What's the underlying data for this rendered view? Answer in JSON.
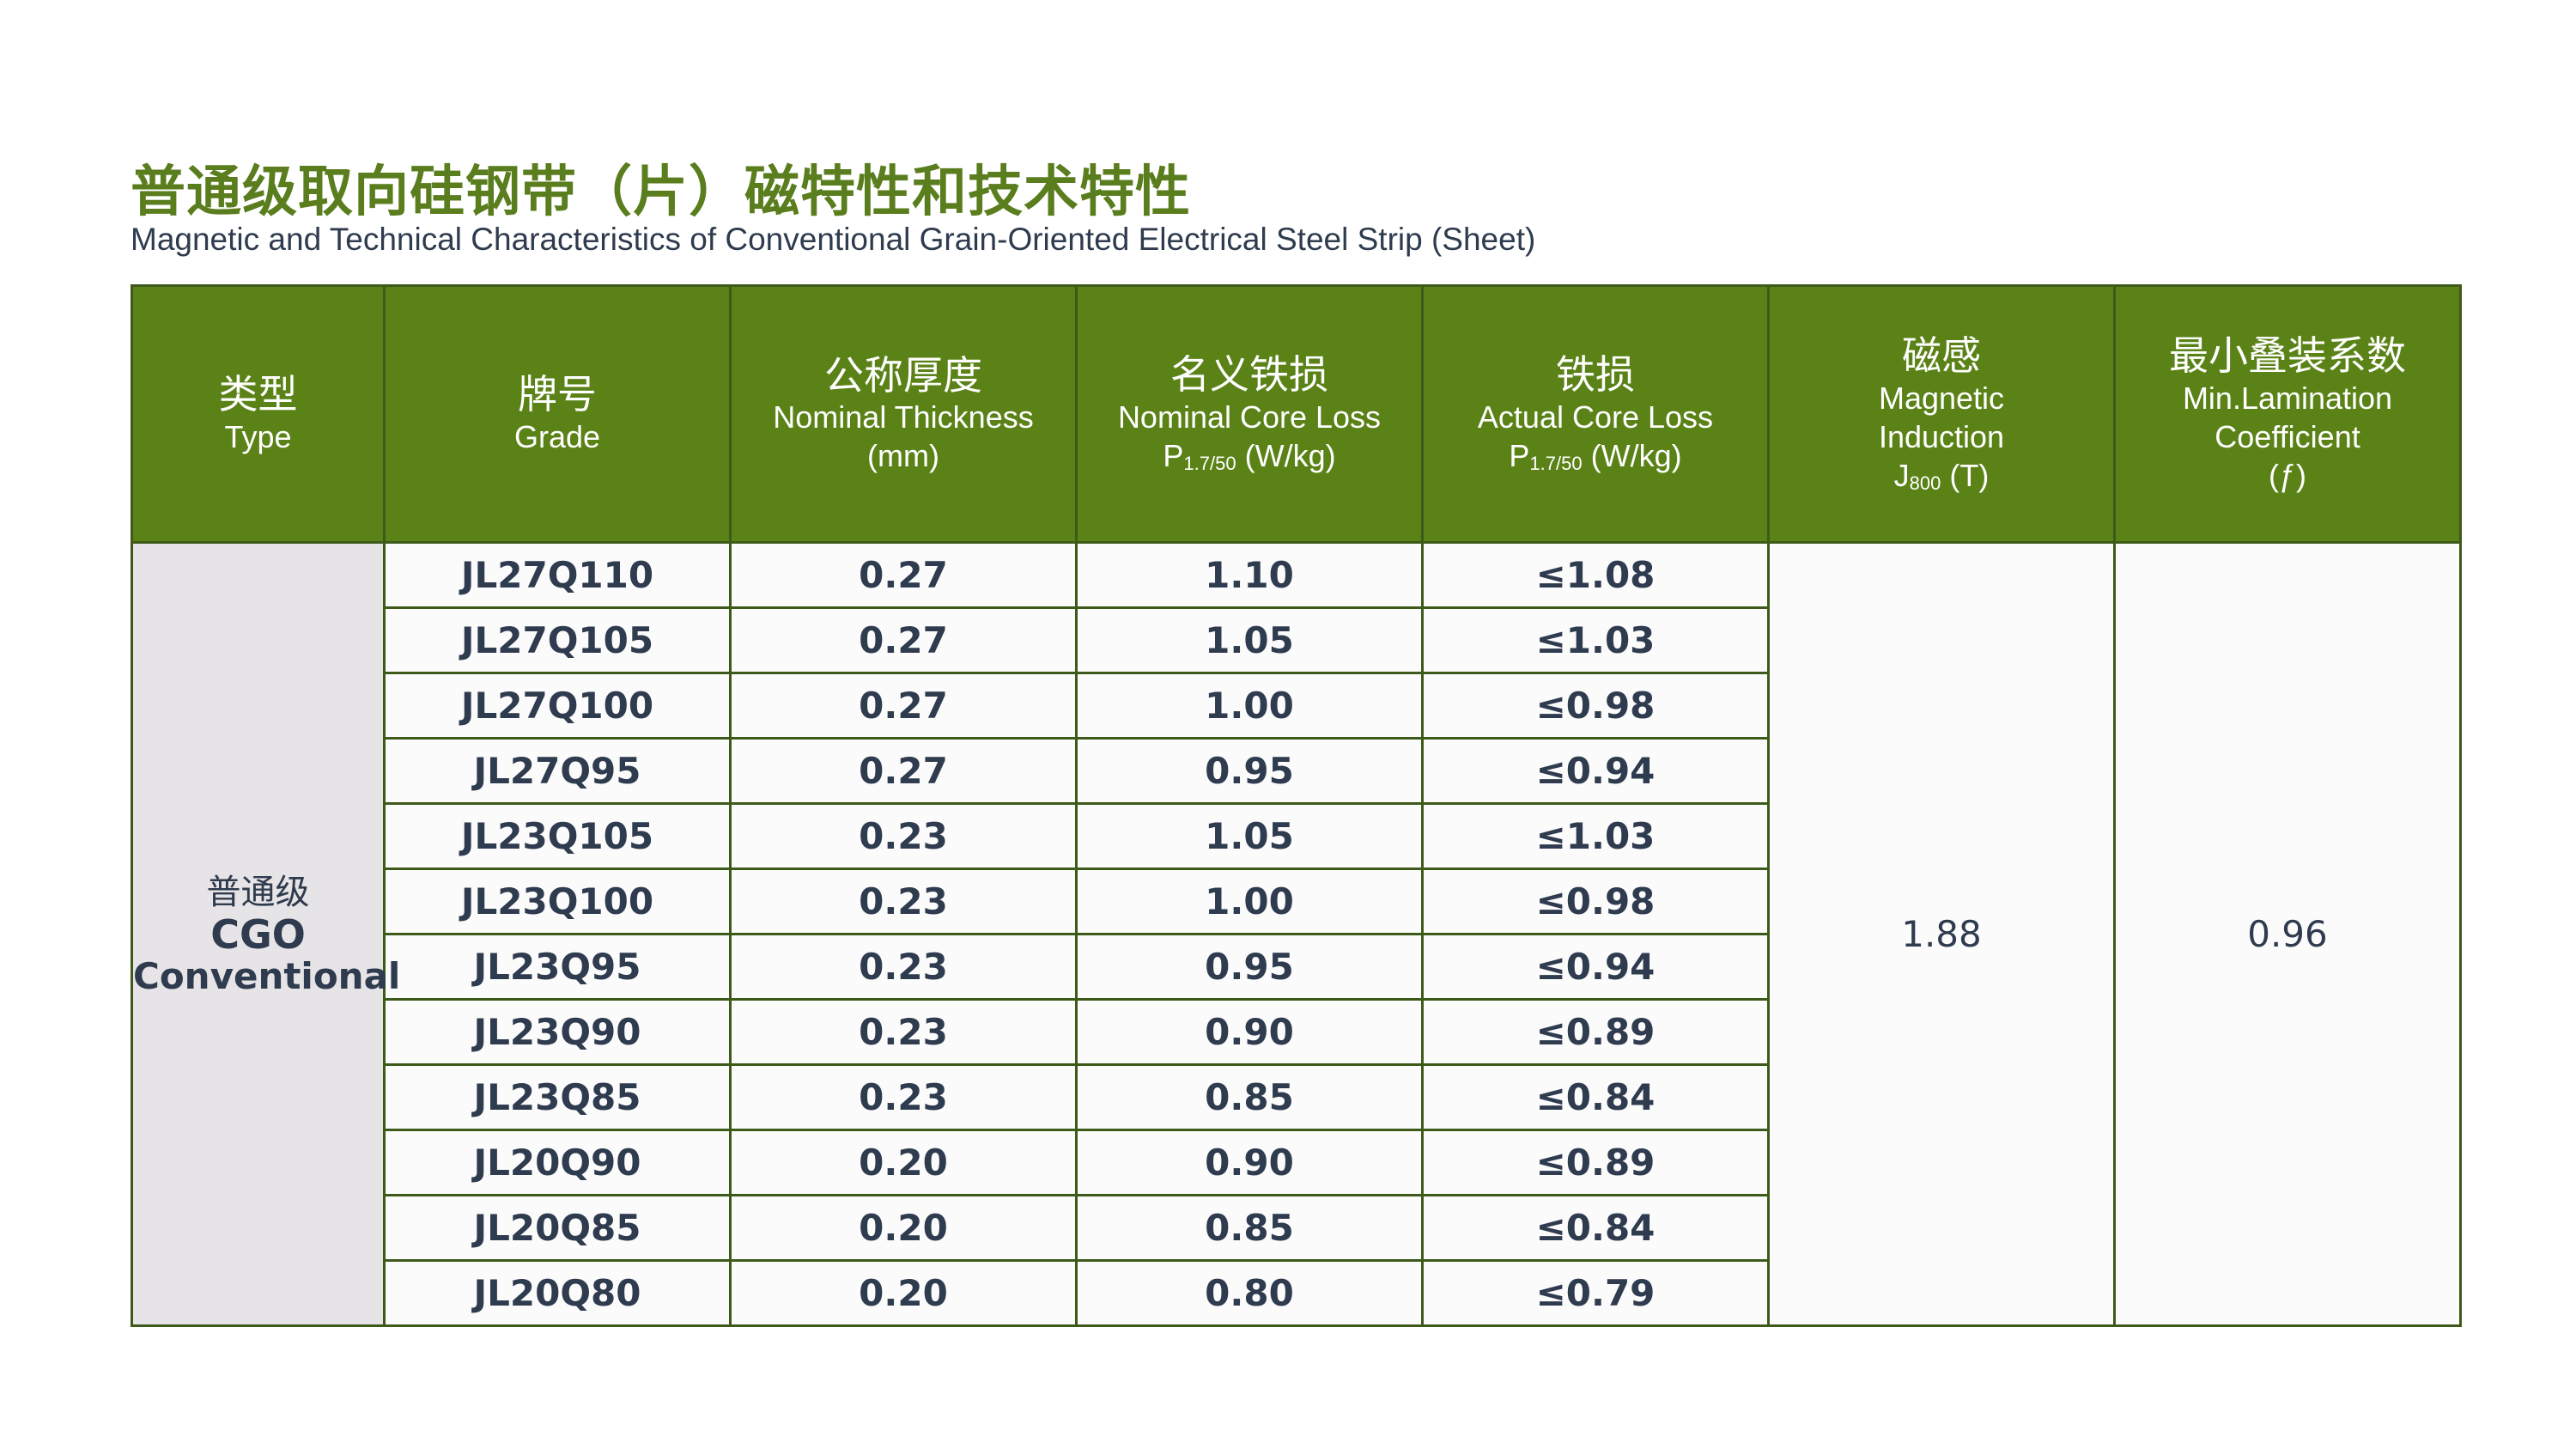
{
  "title_cn": "普通级取向硅钢带（片）磁特性和技术特性",
  "title_en": "Magnetic and Technical Characteristics of Conventional Grain-Oriented Electrical Steel Strip (Sheet)",
  "colors": {
    "accent_title": "#5a7d1e",
    "header_bg": "#5a8216",
    "border": "#3e5a1a",
    "type_cell_bg": "#e6e4e6",
    "text": "#2f3b4e"
  },
  "headers": {
    "type": {
      "cn": "类型",
      "en": "Type"
    },
    "grade": {
      "cn": "牌号",
      "en": "Grade"
    },
    "thickness": {
      "cn": "公称厚度",
      "en": "Nominal Thickness",
      "unit": "(mm)"
    },
    "nominal_loss": {
      "cn": "名义铁损",
      "en": "Nominal Core Loss",
      "sym": "P",
      "sub": "1.7/50",
      "unit": " (W/kg)"
    },
    "actual_loss": {
      "cn": "铁损",
      "en": "Actual Core Loss",
      "sym": "P",
      "sub": "1.7/50",
      "unit": " (W/kg)"
    },
    "induction": {
      "cn": "磁感",
      "en1": "Magnetic",
      "en2": "Induction",
      "sym": "J",
      "sub": "800",
      "unit": " (T)"
    },
    "lamination": {
      "cn": "最小叠装系数",
      "en1": "Min.Lamination",
      "en2": "Coefficient",
      "sym": "(ƒ)"
    }
  },
  "type_cell": {
    "cn": "普通级",
    "en1": "CGO",
    "en2": "Conventional"
  },
  "rows": [
    {
      "grade": "JL27Q110",
      "thickness": "0.27",
      "nominal": "1.10",
      "actual": "≤1.08"
    },
    {
      "grade": "JL27Q105",
      "thickness": "0.27",
      "nominal": "1.05",
      "actual": "≤1.03"
    },
    {
      "grade": "JL27Q100",
      "thickness": "0.27",
      "nominal": "1.00",
      "actual": "≤0.98"
    },
    {
      "grade": "JL27Q95",
      "thickness": "0.27",
      "nominal": "0.95",
      "actual": "≤0.94"
    },
    {
      "grade": "JL23Q105",
      "thickness": "0.23",
      "nominal": "1.05",
      "actual": "≤1.03"
    },
    {
      "grade": "JL23Q100",
      "thickness": "0.23",
      "nominal": "1.00",
      "actual": "≤0.98"
    },
    {
      "grade": "JL23Q95",
      "thickness": "0.23",
      "nominal": "0.95",
      "actual": "≤0.94"
    },
    {
      "grade": "JL23Q90",
      "thickness": "0.23",
      "nominal": "0.90",
      "actual": "≤0.89"
    },
    {
      "grade": "JL23Q85",
      "thickness": "0.23",
      "nominal": "0.85",
      "actual": "≤0.84"
    },
    {
      "grade": "JL20Q90",
      "thickness": "0.20",
      "nominal": "0.90",
      "actual": "≤0.89"
    },
    {
      "grade": "JL20Q85",
      "thickness": "0.20",
      "nominal": "0.85",
      "actual": "≤0.84"
    },
    {
      "grade": "JL20Q80",
      "thickness": "0.20",
      "nominal": "0.80",
      "actual": "≤0.79"
    }
  ],
  "induction_value": "1.88",
  "lamination_value": "0.96"
}
